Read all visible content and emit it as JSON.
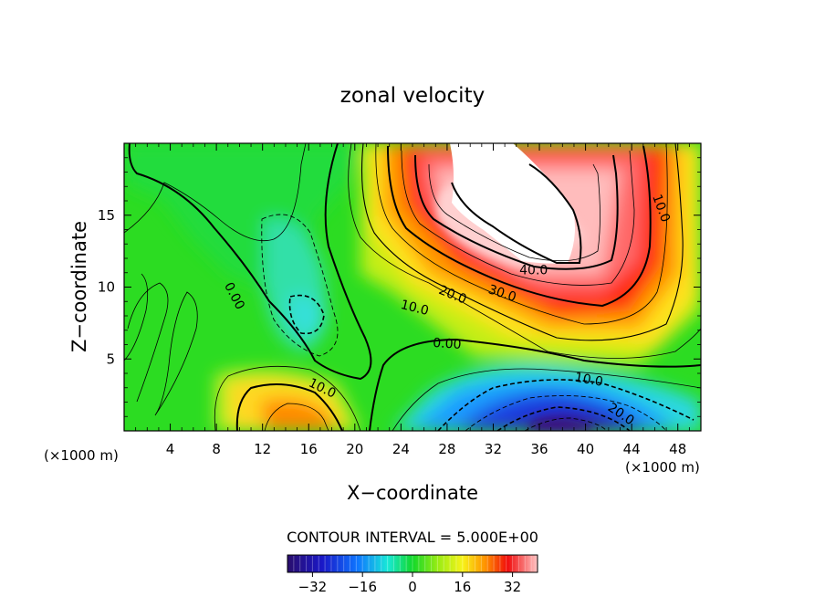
{
  "chart_data": {
    "type": "heatmap",
    "title": "zonal velocity",
    "xlabel": "X−coordinate",
    "ylabel": "Z−coordinate",
    "x_unit_label": "(×1000 m)",
    "z_unit_label": "(×1000 m)",
    "xlim": [
      0,
      50
    ],
    "ylim": [
      0,
      20
    ],
    "x_ticks": [
      4,
      8,
      12,
      16,
      20,
      24,
      28,
      32,
      36,
      40,
      44,
      48
    ],
    "y_ticks": [
      5,
      10,
      15
    ],
    "contour_interval_text": "CONTOUR INTERVAL = 5.000E+00",
    "colorbar": {
      "range": [
        -40,
        40
      ],
      "ticks": [
        -32,
        -16,
        0,
        16,
        32
      ]
    },
    "contour_labels": [
      {
        "text": "40.0",
        "x": 35.5,
        "y": 11.2,
        "rotate": 0
      },
      {
        "text": "30.0",
        "x": 32.8,
        "y": 9.6,
        "rotate": 18
      },
      {
        "text": "20.0",
        "x": 28.5,
        "y": 9.5,
        "rotate": 22
      },
      {
        "text": "10.0",
        "x": 25.2,
        "y": 8.6,
        "rotate": 14
      },
      {
        "text": "10.0",
        "x": 46.6,
        "y": 15.5,
        "rotate": 70
      },
      {
        "text": "0.00",
        "x": 28.0,
        "y": 6.1,
        "rotate": 4
      },
      {
        "text": "0.00",
        "x": 9.6,
        "y": 9.4,
        "rotate": 62
      },
      {
        "text": "10.0",
        "x": 17.2,
        "y": 3.0,
        "rotate": 26
      },
      {
        "text": "10.0",
        "x": 40.3,
        "y": 3.6,
        "rotate": 10
      },
      {
        "text": "20.0",
        "x": 43.1,
        "y": 1.2,
        "rotate": 34
      }
    ],
    "features": [
      {
        "name": "jet core (clipped above 40)",
        "x": [
          30,
          40
        ],
        "z": [
          11,
          20
        ],
        "max_exceeds": 40
      },
      {
        "name": "negative core",
        "x": 37,
        "z": 0.3,
        "min_approx": -35
      },
      {
        "name": "negative eddy",
        "x": 16,
        "z": 8,
        "min_approx": -7
      },
      {
        "name": "lower positive lobe",
        "x": 16,
        "z": 1,
        "max_approx": 22
      }
    ]
  }
}
